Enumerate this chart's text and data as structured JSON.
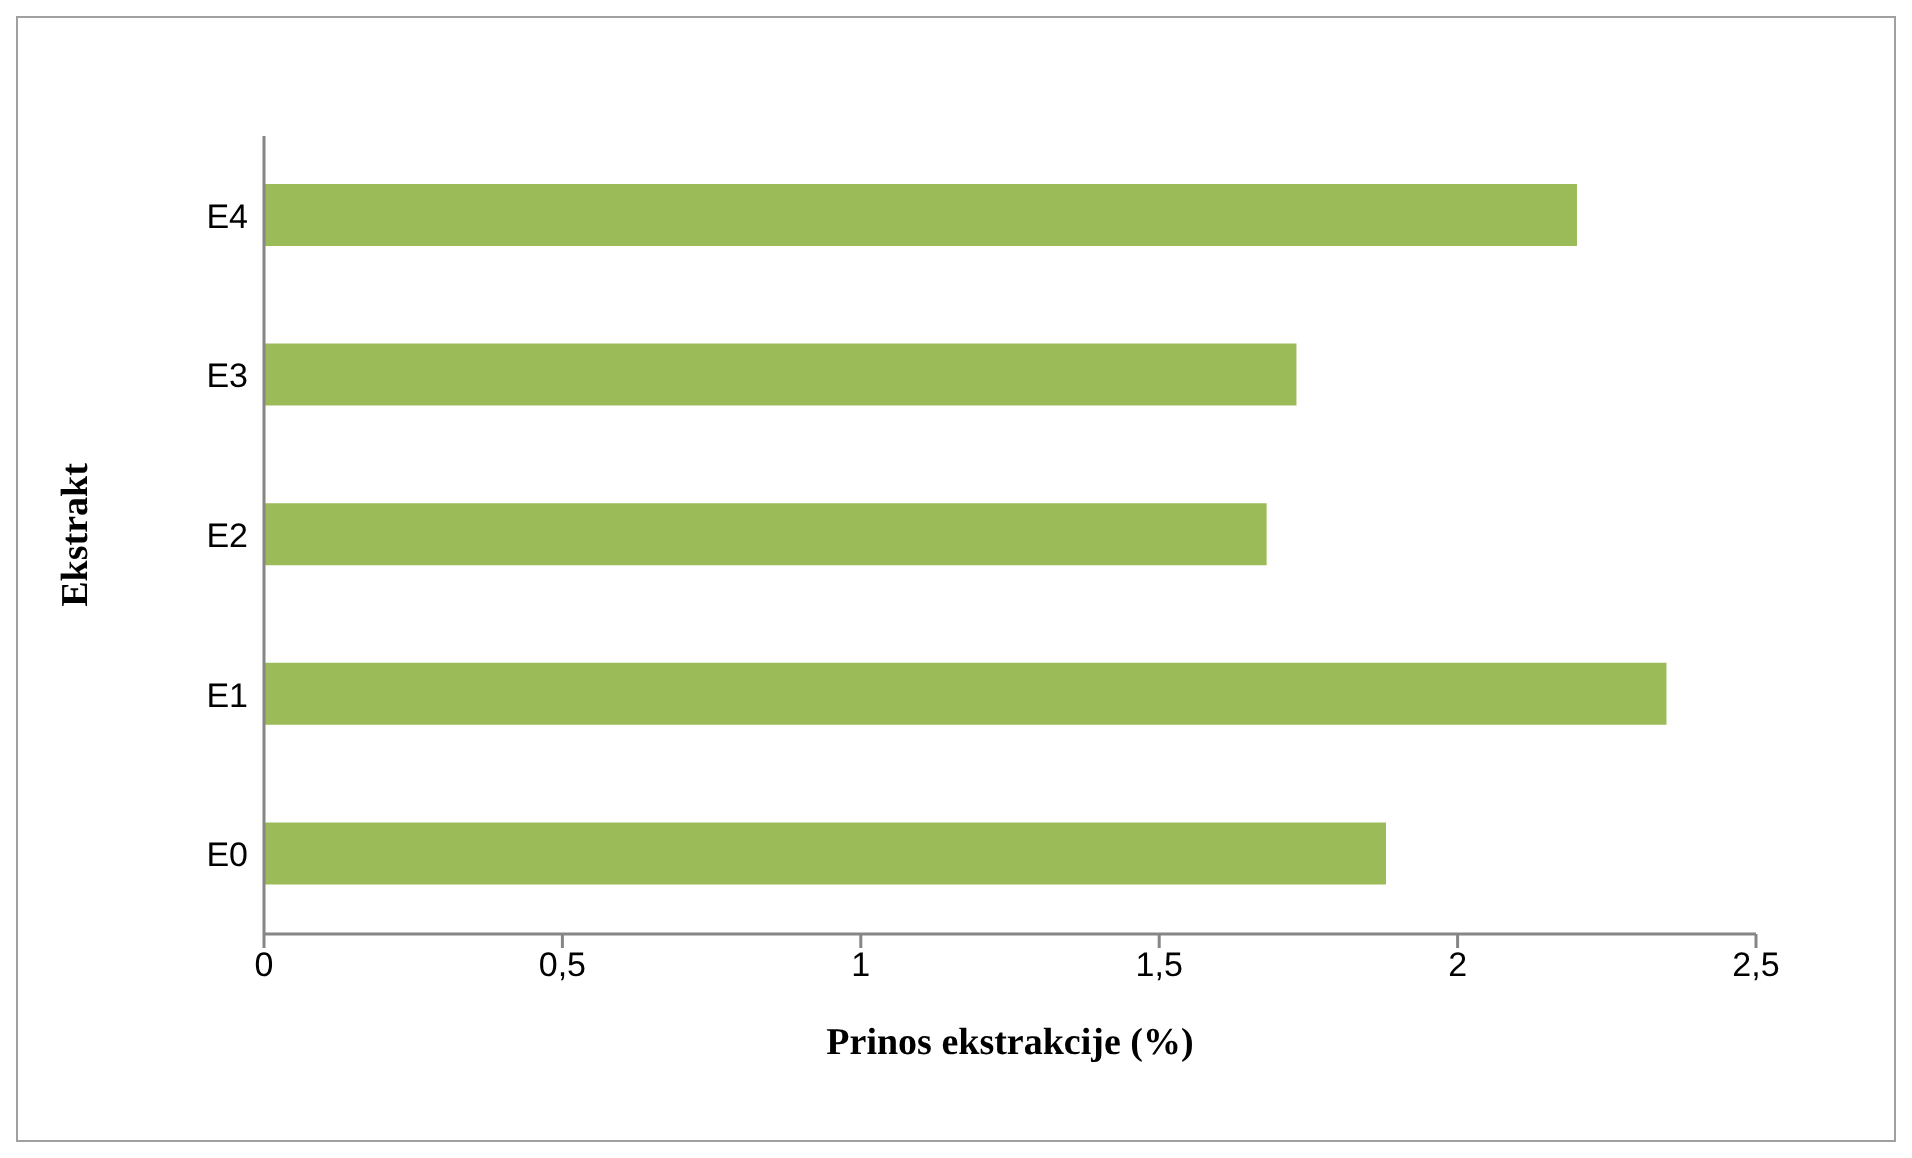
{
  "chart_data": {
    "type": "bar",
    "orientation": "horizontal",
    "xlabel": "Prinos ekstrakcije (%)",
    "ylabel": "Ekstrakt",
    "categories": [
      "E4",
      "E3",
      "E2",
      "E1",
      "E0"
    ],
    "values": [
      2.2,
      1.73,
      1.68,
      2.35,
      1.88
    ],
    "color": "#9bbb59",
    "xlim": [
      0,
      2.5
    ],
    "xticks": [
      0,
      {
        "value": 0.5,
        "label": "0,5"
      },
      1,
      {
        "value": 1.5,
        "label": "1,5"
      },
      2,
      {
        "value": 2.5,
        "label": "2,5"
      }
    ]
  }
}
